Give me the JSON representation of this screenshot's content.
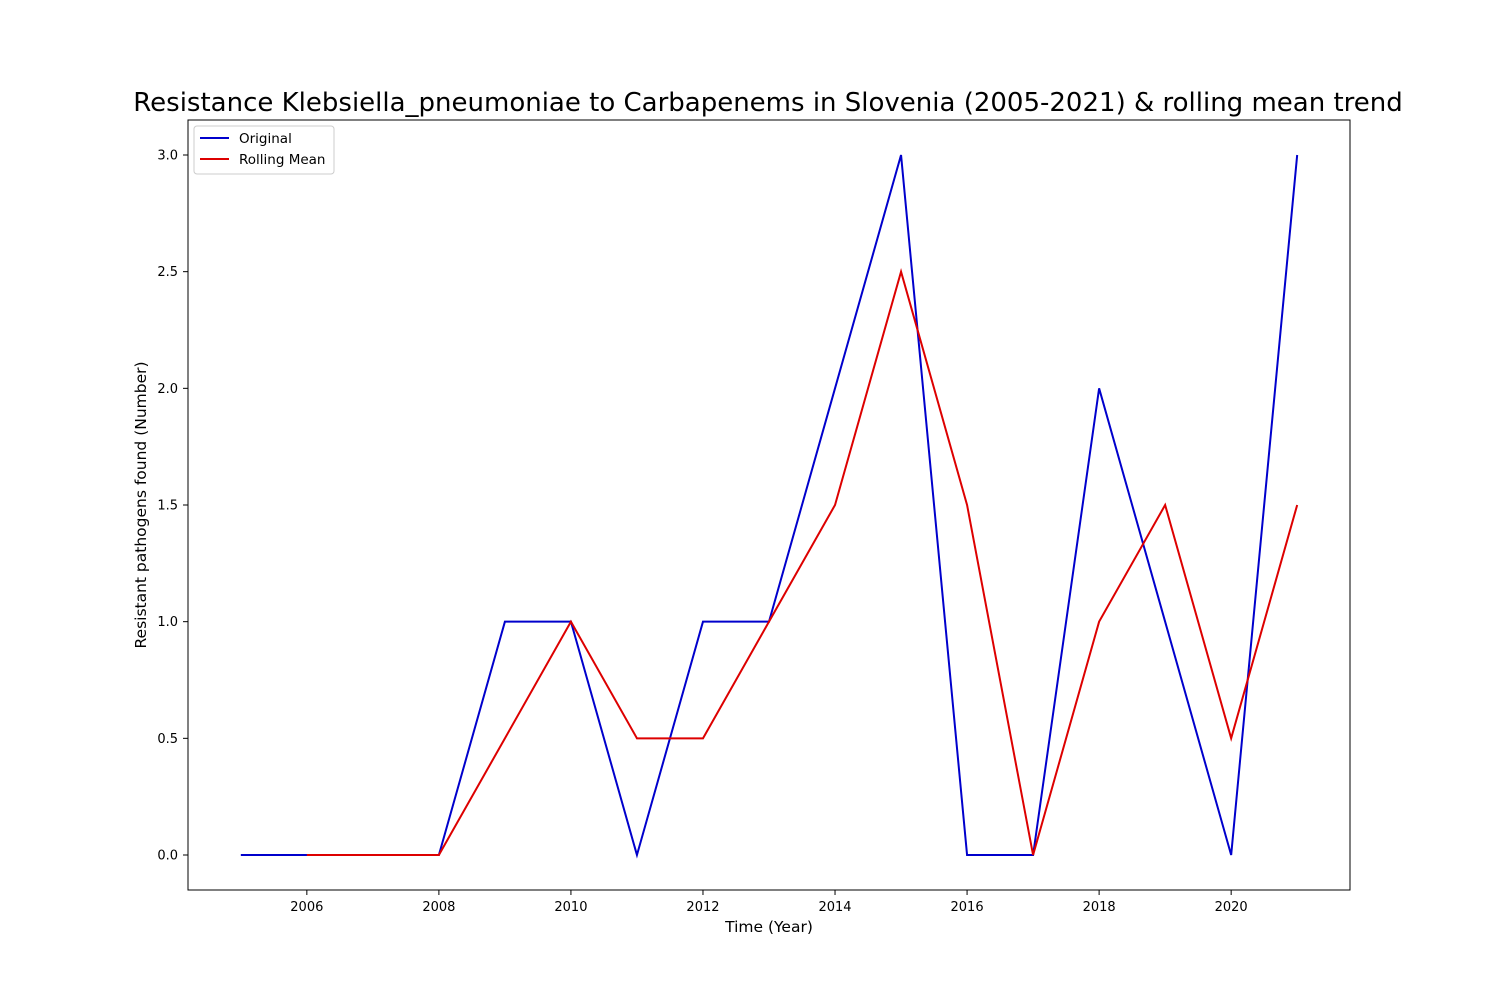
{
  "chart_data": {
    "type": "line",
    "title": "Resistance Klebsiella_pneumoniae to Carbapenems in Slovenia (2005-2021) & rolling mean trend",
    "xlabel": "Time (Year)",
    "ylabel": "Resistant pathogens found (Number)",
    "xlim": [
      2004.2,
      2021.8
    ],
    "ylim": [
      -0.15,
      3.15
    ],
    "x_ticks": [
      "2006",
      "2008",
      "2010",
      "2012",
      "2014",
      "2016",
      "2018",
      "2020"
    ],
    "y_ticks": [
      "0.0",
      "0.5",
      "1.0",
      "1.5",
      "2.0",
      "2.5",
      "3.0"
    ],
    "grid": false,
    "legend_position": "top-left",
    "series": [
      {
        "name": "Original",
        "color": "#0000cc",
        "x": [
          2005,
          2006,
          2007,
          2008,
          2009,
          2010,
          2011,
          2012,
          2013,
          2014,
          2015,
          2016,
          2017,
          2018,
          2019,
          2020,
          2021
        ],
        "values": [
          0,
          0,
          0,
          0,
          1,
          1,
          0,
          1,
          1,
          2,
          3,
          0,
          0,
          2,
          1,
          0,
          3
        ]
      },
      {
        "name": "Rolling Mean",
        "color": "#dd0000",
        "x": [
          2006,
          2007,
          2008,
          2009,
          2010,
          2011,
          2012,
          2013,
          2014,
          2015,
          2016,
          2017,
          2018,
          2019,
          2020,
          2021
        ],
        "values": [
          0,
          0,
          0,
          0.5,
          1,
          0.5,
          0.5,
          1,
          1.5,
          2.5,
          1.5,
          0,
          1,
          1.5,
          0.5,
          1.5
        ]
      }
    ]
  }
}
